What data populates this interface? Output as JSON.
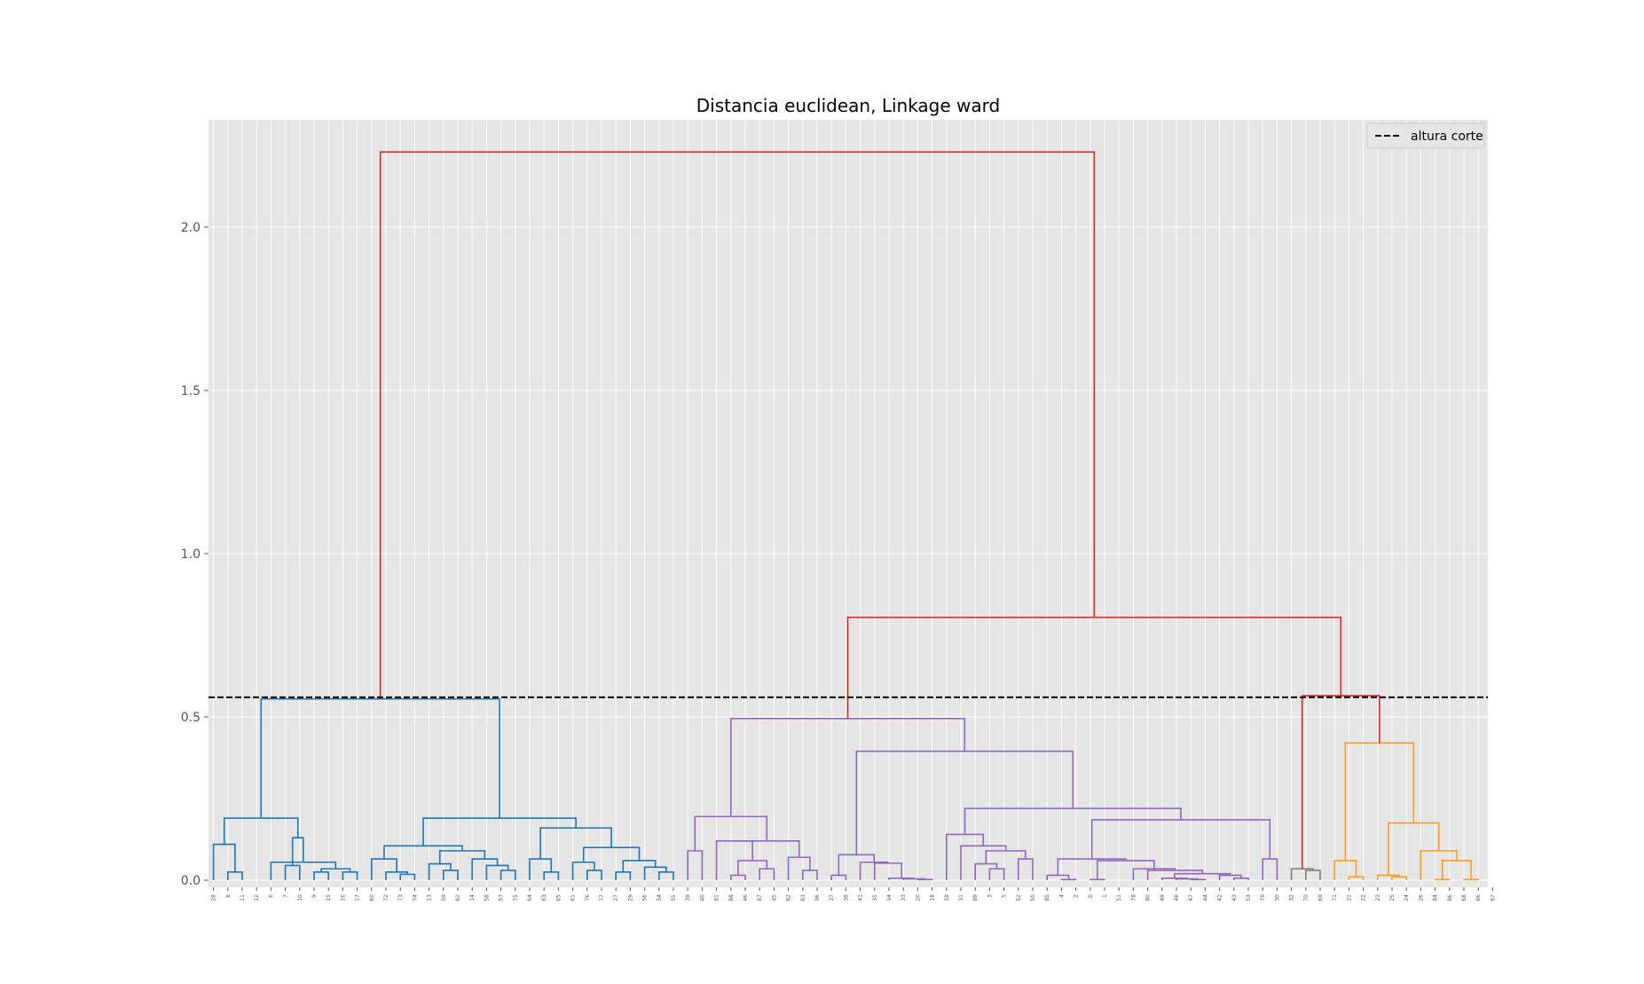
{
  "chart_data": {
    "type": "dendrogram",
    "title": "Distancia euclidean, Linkage ward",
    "xlabel": "",
    "ylabel": "",
    "ylim": [
      0,
      2.35
    ],
    "yticks": [
      "0.0",
      "0.5",
      "1.0",
      "1.5",
      "2.0"
    ],
    "grid": true,
    "legend_position": "top-right",
    "legend": [
      {
        "label": "altura corte",
        "style": "dashed",
        "color": "#000000"
      }
    ],
    "cut_height": 0.56,
    "leaf_labels": [
      "28",
      "8",
      "11",
      "12",
      "6",
      "7",
      "10",
      "9",
      "15",
      "16",
      "17",
      "60",
      "72",
      "73",
      "74",
      "13",
      "59",
      "62",
      "14",
      "58",
      "57",
      "75",
      "64",
      "63",
      "65",
      "61",
      "76",
      "77",
      "27",
      "29",
      "56",
      "54",
      "55",
      "39",
      "40",
      "81",
      "88",
      "46",
      "87",
      "45",
      "82",
      "83",
      "36",
      "37",
      "38",
      "41",
      "35",
      "34",
      "33",
      "20",
      "18",
      "19",
      "31",
      "89",
      "3",
      "5",
      "52",
      "50",
      "85",
      "4",
      "2",
      "0",
      "1",
      "51",
      "78",
      "80",
      "49",
      "48",
      "47",
      "44",
      "42",
      "43",
      "53",
      "79",
      "30",
      "32",
      "70",
      "69",
      "71",
      "21",
      "22",
      "23",
      "25",
      "24",
      "26",
      "84",
      "86",
      "68",
      "66",
      "67"
    ],
    "colors": {
      "cluster_1": "#1f77b4",
      "cluster_2": "#9467bd",
      "cluster_3": "#7f7f7f",
      "cluster_4": "#ff9e1b",
      "above_cut": "#d62728"
    },
    "merges": [
      {
        "left": 1,
        "right": 2,
        "height": 0.025,
        "color": "cluster_1"
      },
      {
        "left": 0,
        "right": "m0",
        "height": 0.11,
        "color": "cluster_1"
      },
      {
        "left": 5,
        "right": 6,
        "height": 0.045,
        "color": "cluster_1"
      },
      {
        "left": 7,
        "right": 8,
        "height": 0.025,
        "color": "cluster_1"
      },
      {
        "left": 9,
        "right": 10,
        "height": 0.025,
        "color": "cluster_1"
      },
      {
        "left": "m3",
        "right": "m4",
        "height": 0.035,
        "color": "cluster_1"
      },
      {
        "left": 4,
        "right": "m5",
        "height": 0.055,
        "color": "cluster_1"
      },
      {
        "left": "m2",
        "right": "m6",
        "height": 0.13,
        "color": "cluster_1"
      },
      {
        "left": "m1",
        "right": "m7",
        "height": 0.19,
        "color": "cluster_1"
      },
      {
        "left": 13,
        "right": 14,
        "height": 0.018,
        "color": "cluster_1"
      },
      {
        "left": 12,
        "right": "m9",
        "height": 0.025,
        "color": "cluster_1"
      },
      {
        "left": 11,
        "right": "m10",
        "height": 0.065,
        "color": "cluster_1"
      },
      {
        "left": 16,
        "right": 17,
        "height": 0.03,
        "color": "cluster_1"
      },
      {
        "left": 15,
        "right": "m12",
        "height": 0.05,
        "color": "cluster_1"
      },
      {
        "left": 20,
        "right": 21,
        "height": 0.03,
        "color": "cluster_1"
      },
      {
        "left": 19,
        "right": "m14",
        "height": 0.045,
        "color": "cluster_1"
      },
      {
        "left": 18,
        "right": "m15",
        "height": 0.065,
        "color": "cluster_1"
      },
      {
        "left": "m13",
        "right": "m16",
        "height": 0.09,
        "color": "cluster_1"
      },
      {
        "left": "m11",
        "right": "m17",
        "height": 0.105,
        "color": "cluster_1"
      },
      {
        "left": 23,
        "right": 24,
        "height": 0.025,
        "color": "cluster_1"
      },
      {
        "left": 22,
        "right": "m19",
        "height": 0.065,
        "color": "cluster_1"
      },
      {
        "left": 26,
        "right": 27,
        "height": 0.03,
        "color": "cluster_1"
      },
      {
        "left": 25,
        "right": "m21",
        "height": 0.055,
        "color": "cluster_1"
      },
      {
        "left": 28,
        "right": 29,
        "height": 0.025,
        "color": "cluster_1"
      },
      {
        "left": 31,
        "right": 32,
        "height": 0.025,
        "color": "cluster_1"
      },
      {
        "left": 30,
        "right": "m24",
        "height": 0.04,
        "color": "cluster_1"
      },
      {
        "left": "m23",
        "right": "m25",
        "height": 0.06,
        "color": "cluster_1"
      },
      {
        "left": "m22",
        "right": "m26",
        "height": 0.1,
        "color": "cluster_1"
      },
      {
        "left": "m20",
        "right": "m27",
        "height": 0.16,
        "color": "cluster_1"
      },
      {
        "left": "m18",
        "right": "m28",
        "height": 0.19,
        "color": "cluster_1"
      },
      {
        "left": "m8",
        "right": "m29",
        "height": 0.555,
        "color": "cluster_1"
      },
      {
        "left": 33,
        "right": 34,
        "height": 0.09,
        "color": "cluster_2"
      },
      {
        "left": 36,
        "right": 37,
        "height": 0.015,
        "color": "cluster_2"
      },
      {
        "left": 38,
        "right": 39,
        "height": 0.035,
        "color": "cluster_2"
      },
      {
        "left": "m32",
        "right": "m33",
        "height": 0.06,
        "color": "cluster_2"
      },
      {
        "left": 35,
        "right": "m34",
        "height": 0.12,
        "color": "cluster_2"
      },
      {
        "left": 41,
        "right": 42,
        "height": 0.03,
        "color": "cluster_2"
      },
      {
        "left": 40,
        "right": "m36",
        "height": 0.07,
        "color": "cluster_2"
      },
      {
        "left": "m35",
        "right": "m37",
        "height": 0.12,
        "color": "cluster_2"
      },
      {
        "left": "m31",
        "right": "m38",
        "height": 0.195,
        "color": "cluster_2"
      },
      {
        "left": 43,
        "right": 44,
        "height": 0.015,
        "color": "cluster_2"
      },
      {
        "left": 49,
        "right": 50,
        "height": 0.002,
        "color": "cluster_2"
      },
      {
        "left": 48,
        "right": "m41",
        "height": 0.004,
        "color": "cluster_2"
      },
      {
        "left": 47,
        "right": "m42",
        "height": 0.006,
        "color": "cluster_2"
      },
      {
        "left": 46,
        "right": "m43",
        "height": 0.052,
        "color": "cluster_2"
      },
      {
        "left": 45,
        "right": "m44",
        "height": 0.055,
        "color": "cluster_2"
      },
      {
        "left": "m40",
        "right": "m45",
        "height": 0.078,
        "color": "cluster_2"
      },
      {
        "left": 54,
        "right": 55,
        "height": 0.035,
        "color": "cluster_2"
      },
      {
        "left": 53,
        "right": "m47",
        "height": 0.05,
        "color": "cluster_2"
      },
      {
        "left": 56,
        "right": 57,
        "height": 0.065,
        "color": "cluster_2"
      },
      {
        "left": "m48",
        "right": "m49",
        "height": 0.09,
        "color": "cluster_2"
      },
      {
        "left": 52,
        "right": "m50",
        "height": 0.105,
        "color": "cluster_2"
      },
      {
        "left": 51,
        "right": "m51",
        "height": 0.14,
        "color": "cluster_2"
      },
      {
        "left": 59,
        "right": 60,
        "height": 0.002,
        "color": "cluster_2"
      },
      {
        "left": 58,
        "right": "m53",
        "height": 0.015,
        "color": "cluster_2"
      },
      {
        "left": 68,
        "right": 69,
        "height": 0.002,
        "color": "cluster_2"
      },
      {
        "left": 67,
        "right": "m55",
        "height": 0.004,
        "color": "cluster_2"
      },
      {
        "left": 66,
        "right": "m56",
        "height": 0.006,
        "color": "cluster_2"
      },
      {
        "left": 71,
        "right": 72,
        "height": 0.006,
        "color": "cluster_2"
      },
      {
        "left": 70,
        "right": "m58",
        "height": 0.015,
        "color": "cluster_2"
      },
      {
        "left": "m57",
        "right": "m59",
        "height": 0.02,
        "color": "cluster_2"
      },
      {
        "left": 65,
        "right": "m60",
        "height": 0.03,
        "color": "cluster_2"
      },
      {
        "left": 64,
        "right": "m61",
        "height": 0.035,
        "color": "cluster_2"
      },
      {
        "left": 61,
        "right": 62,
        "height": 0.002,
        "color": "cluster_2"
      },
      {
        "left": "m63",
        "right": "m62",
        "height": 0.06,
        "color": "cluster_2"
      },
      {
        "left": "m54",
        "right": "m64",
        "height": 0.065,
        "color": "cluster_2"
      },
      {
        "left": 73,
        "right": 74,
        "height": 0.065,
        "color": "cluster_2"
      },
      {
        "left": "m65",
        "right": "m66",
        "height": 0.185,
        "color": "cluster_2"
      },
      {
        "left": "m52",
        "right": "m67",
        "height": 0.22,
        "color": "cluster_2"
      },
      {
        "left": "m46",
        "right": "m68",
        "height": 0.395,
        "color": "cluster_2"
      },
      {
        "left": "m39",
        "right": "m69",
        "height": 0.495,
        "color": "cluster_2"
      },
      {
        "left": 76,
        "right": 77,
        "height": 0.03,
        "color": "cluster_3"
      },
      {
        "left": 75,
        "right": "m71",
        "height": 0.035,
        "color": "cluster_3"
      },
      {
        "left": 79,
        "right": 80,
        "height": 0.01,
        "color": "cluster_4"
      },
      {
        "left": 78,
        "right": "m73",
        "height": 0.06,
        "color": "cluster_4"
      },
      {
        "left": 82,
        "right": 83,
        "height": 0.01,
        "color": "cluster_4"
      },
      {
        "left": 81,
        "right": "m75",
        "height": 0.015,
        "color": "cluster_4"
      },
      {
        "left": 85,
        "right": 86,
        "height": 0.002,
        "color": "cluster_4"
      },
      {
        "left": 87,
        "right": 88,
        "height": 0.002,
        "color": "cluster_4"
      },
      {
        "left": "m77",
        "right": "m78",
        "height": 0.06,
        "color": "cluster_4"
      },
      {
        "left": 84,
        "right": "m79",
        "height": 0.09,
        "color": "cluster_4"
      },
      {
        "left": "m76",
        "right": "m80",
        "height": 0.175,
        "color": "cluster_4"
      },
      {
        "left": "m74",
        "right": "m81",
        "height": 0.42,
        "color": "cluster_4"
      },
      {
        "left": "m72",
        "right": "m82",
        "height": 0.565,
        "color": "above_cut"
      },
      {
        "left": "m70",
        "right": "m83",
        "height": 0.805,
        "color": "above_cut"
      },
      {
        "left": "m30",
        "right": "m84",
        "height": 2.23,
        "color": "above_cut"
      }
    ]
  }
}
